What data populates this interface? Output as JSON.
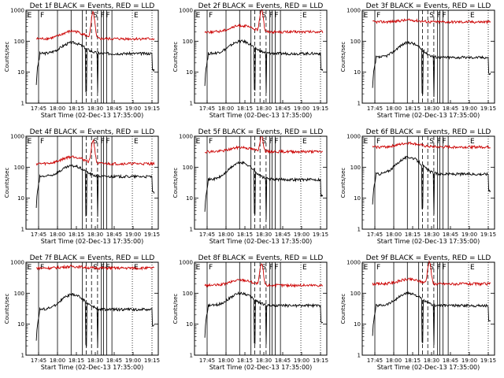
{
  "chart_data": [
    {
      "type": "line",
      "title": "Det 1f BLACK = Events, RED = LLD",
      "xlabel": "Start Time (02-Dec-13 17:35:00)",
      "ylabel": "Counts/sec",
      "x_ticks": [
        "17:45",
        "18:00",
        "18:15",
        "18:30",
        "18:45",
        "19:00",
        "19:15"
      ],
      "y_ticks": [
        "1",
        "10",
        "100",
        "1000"
      ],
      "ylim": [
        1,
        1000
      ],
      "y_scale": "log",
      "series": [
        {
          "name": "Events",
          "color": "#000000",
          "base": 40,
          "hump": 50,
          "peak": 0
        },
        {
          "name": "LLD",
          "color": "#cc0000",
          "base": 120,
          "hump": 90,
          "peak": 700
        }
      ],
      "markers": [
        "E",
        "F",
        "S",
        "F",
        "F",
        "E"
      ]
    },
    {
      "type": "line",
      "title": "Det 2f BLACK = Events, RED = LLD",
      "xlabel": "Start Time (02-Dec-13 17:35:00)",
      "ylabel": "Counts/sec",
      "x_ticks": [
        "17:45",
        "18:00",
        "18:15",
        "18:30",
        "18:45",
        "19:00",
        "19:15"
      ],
      "y_ticks": [
        "1",
        "10",
        "100",
        "1000"
      ],
      "ylim": [
        1,
        1000
      ],
      "y_scale": "log",
      "series": [
        {
          "name": "Events",
          "color": "#000000",
          "base": 40,
          "hump": 60,
          "peak": 0
        },
        {
          "name": "LLD",
          "color": "#cc0000",
          "base": 200,
          "hump": 120,
          "peak": 900
        }
      ],
      "markers": [
        "E",
        "F",
        "S",
        "F",
        "F",
        "E"
      ]
    },
    {
      "type": "line",
      "title": "Det 3f BLACK = Events, RED = LLD",
      "xlabel": "Start Time (02-Dec-13 17:35:00)",
      "ylabel": "Counts/sec",
      "x_ticks": [
        "17:45",
        "18:00",
        "18:15",
        "18:30",
        "18:45",
        "19:00",
        "19:15"
      ],
      "y_ticks": [
        "1",
        "10",
        "100",
        "1000"
      ],
      "ylim": [
        1,
        1000
      ],
      "y_scale": "log",
      "series": [
        {
          "name": "Events",
          "color": "#000000",
          "base": 30,
          "hump": 60,
          "peak": 0
        },
        {
          "name": "LLD",
          "color": "#cc0000",
          "base": 420,
          "hump": 60,
          "peak": 0
        }
      ],
      "markers": [
        "E",
        "F",
        "S",
        "F",
        "F",
        "E"
      ]
    },
    {
      "type": "line",
      "title": "Det 4f BLACK = Events, RED = LLD",
      "xlabel": "Start Time (02-Dec-13 17:35:00)",
      "ylabel": "Counts/sec",
      "x_ticks": [
        "17:45",
        "18:00",
        "18:15",
        "18:30",
        "18:45",
        "19:00",
        "19:15"
      ],
      "y_ticks": [
        "1",
        "10",
        "100",
        "1000"
      ],
      "ylim": [
        1,
        1000
      ],
      "y_scale": "log",
      "series": [
        {
          "name": "Events",
          "color": "#000000",
          "base": 50,
          "hump": 60,
          "peak": 0
        },
        {
          "name": "LLD",
          "color": "#cc0000",
          "base": 130,
          "hump": 90,
          "peak": 600
        }
      ],
      "markers": [
        "E",
        "F",
        "S",
        "F",
        "F",
        "E"
      ]
    },
    {
      "type": "line",
      "title": "Det 5f BLACK = Events, RED = LLD",
      "xlabel": "Start Time (02-Dec-13 17:35:00)",
      "ylabel": "Counts/sec",
      "x_ticks": [
        "17:45",
        "18:00",
        "18:15",
        "18:30",
        "18:45",
        "19:00",
        "19:15"
      ],
      "y_ticks": [
        "1",
        "10",
        "100",
        "1000"
      ],
      "ylim": [
        1,
        1000
      ],
      "y_scale": "log",
      "series": [
        {
          "name": "Events",
          "color": "#000000",
          "base": 40,
          "hump": 100,
          "peak": 0
        },
        {
          "name": "LLD",
          "color": "#cc0000",
          "base": 320,
          "hump": 120,
          "peak": 700
        }
      ],
      "markers": [
        "E",
        "F",
        "S",
        "F",
        "F",
        "E"
      ]
    },
    {
      "type": "line",
      "title": "Det 6f BLACK = Events, RED = LLD",
      "xlabel": "Start Time (02-Dec-13 17:35:00)",
      "ylabel": "Counts/sec",
      "x_ticks": [
        "17:45",
        "18:00",
        "18:15",
        "18:30",
        "18:45",
        "19:00",
        "19:15"
      ],
      "y_ticks": [
        "1",
        "10",
        "100",
        "1000"
      ],
      "ylim": [
        1,
        1000
      ],
      "y_scale": "log",
      "series": [
        {
          "name": "Events",
          "color": "#000000",
          "base": 60,
          "hump": 150,
          "peak": 0
        },
        {
          "name": "LLD",
          "color": "#cc0000",
          "base": 450,
          "hump": 150,
          "peak": 0
        }
      ],
      "markers": [
        "E",
        "F",
        "S",
        "F",
        "F",
        "E"
      ]
    },
    {
      "type": "line",
      "title": "Det 7f BLACK = Events, RED = LLD",
      "xlabel": "Start Time (02-Dec-13 17:35:00)",
      "ylabel": "Counts/sec",
      "x_ticks": [
        "17:45",
        "18:00",
        "18:15",
        "18:30",
        "18:45",
        "19:00",
        "19:15"
      ],
      "y_ticks": [
        "1",
        "10",
        "100",
        "1000"
      ],
      "ylim": [
        1,
        1000
      ],
      "y_scale": "log",
      "series": [
        {
          "name": "Events",
          "color": "#000000",
          "base": 30,
          "hump": 60,
          "peak": 0
        },
        {
          "name": "LLD",
          "color": "#cc0000",
          "base": 650,
          "hump": 80,
          "peak": 0
        }
      ],
      "markers": [
        "E",
        "F",
        "S",
        "F",
        "F",
        "E"
      ]
    },
    {
      "type": "line",
      "title": "Det 8f BLACK = Events, RED = LLD",
      "xlabel": "Start Time (02-Dec-13 17:35:00)",
      "ylabel": "Counts/sec",
      "x_ticks": [
        "17:45",
        "18:00",
        "18:15",
        "18:30",
        "18:45",
        "19:00",
        "19:15"
      ],
      "y_ticks": [
        "1",
        "10",
        "100",
        "1000"
      ],
      "ylim": [
        1,
        1000
      ],
      "y_scale": "log",
      "series": [
        {
          "name": "Events",
          "color": "#000000",
          "base": 40,
          "hump": 60,
          "peak": 0
        },
        {
          "name": "LLD",
          "color": "#cc0000",
          "base": 180,
          "hump": 90,
          "peak": 700
        }
      ],
      "markers": [
        "E",
        "F",
        "S",
        "F",
        "F",
        "E"
      ]
    },
    {
      "type": "line",
      "title": "Det 9f BLACK = Events, RED = LLD",
      "xlabel": "Start Time (02-Dec-13 17:35:00)",
      "ylabel": "Counts/sec",
      "x_ticks": [
        "17:45",
        "18:00",
        "18:15",
        "18:30",
        "18:45",
        "19:00",
        "19:15"
      ],
      "y_ticks": [
        "1",
        "10",
        "100",
        "1000"
      ],
      "ylim": [
        1,
        1000
      ],
      "y_scale": "log",
      "series": [
        {
          "name": "Events",
          "color": "#000000",
          "base": 40,
          "hump": 60,
          "peak": 0
        },
        {
          "name": "LLD",
          "color": "#cc0000",
          "base": 200,
          "hump": 80,
          "peak": 850
        }
      ],
      "markers": [
        "E",
        "F",
        "S",
        "F",
        "F",
        "E"
      ]
    }
  ]
}
